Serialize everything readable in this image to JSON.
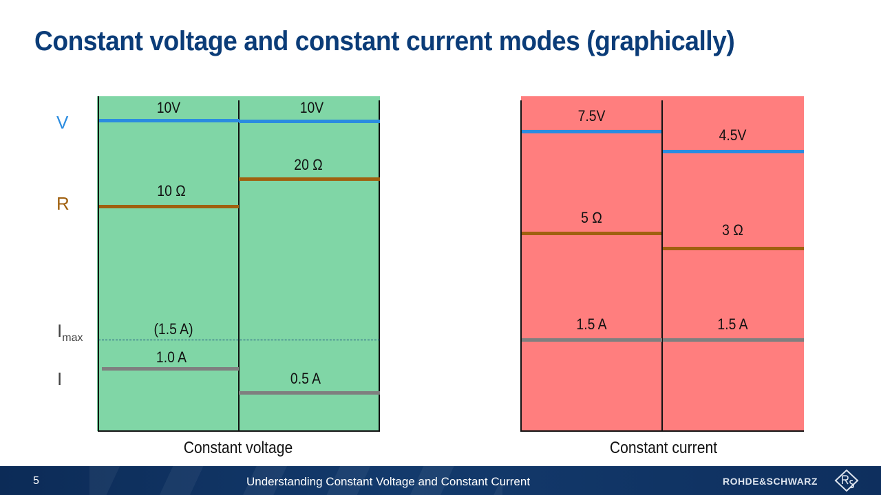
{
  "title": "Constant voltage and constant current modes (graphically)",
  "row_labels": {
    "voltage": "V",
    "resistance": "R",
    "imax_main": "I",
    "imax_sub": "max",
    "current": "I"
  },
  "colors": {
    "voltage_line": "#2b8ce0",
    "resistance_line": "#a0600f",
    "current_line": "#7f7f7f",
    "imax_dash": "#0b3c78",
    "cv_background": "#80d6a6",
    "cc_background": "#ff7e7e",
    "title": "#0b3c78"
  },
  "constant_voltage": {
    "caption": "Constant voltage",
    "imax_label": "(1.5 A)",
    "columns": [
      {
        "voltage": "10V",
        "resistance": "10 Ω",
        "current": "1.0 A"
      },
      {
        "voltage": "10V",
        "resistance": "20 Ω",
        "current": "0.5 A"
      }
    ]
  },
  "constant_current": {
    "caption": "Constant current",
    "columns": [
      {
        "voltage": "7.5V",
        "resistance": "5 Ω",
        "current": "1.5 A"
      },
      {
        "voltage": "4.5V",
        "resistance": "3 Ω",
        "current": "1.5 A"
      }
    ]
  },
  "footer": {
    "page_number": "5",
    "title": "Understanding Constant Voltage and Constant Current",
    "brand": "ROHDE&SCHWARZ",
    "logo_icon": "rohde-schwarz-logo-icon"
  }
}
